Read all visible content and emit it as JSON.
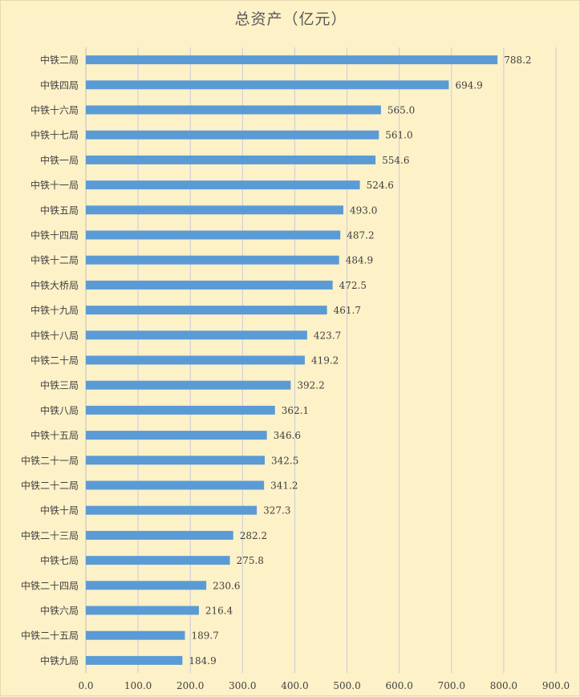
{
  "chart_data": {
    "type": "bar",
    "orientation": "horizontal",
    "title": "总资产（亿元）",
    "xlabel": "",
    "ylabel": "",
    "xlim": [
      0,
      900
    ],
    "ticks": [
      "0.0",
      "100.0",
      "200.0",
      "300.0",
      "400.0",
      "500.0",
      "600.0",
      "700.0",
      "800.0",
      "900.0"
    ],
    "tick_values": [
      0,
      100,
      200,
      300,
      400,
      500,
      600,
      700,
      800,
      900
    ],
    "grid": "vertical",
    "bar_color": "#5b9bd5",
    "background_color": "#fdf1c8",
    "categories": [
      "中铁二局",
      "中铁四局",
      "中铁十六局",
      "中铁十七局",
      "中铁一局",
      "中铁十一局",
      "中铁五局",
      "中铁十四局",
      "中铁十二局",
      "中铁大桥局",
      "中铁十九局",
      "中铁十八局",
      "中铁二十局",
      "中铁三局",
      "中铁八局",
      "中铁十五局",
      "中铁二十一局",
      "中铁二十二局",
      "中铁十局",
      "中铁二十三局",
      "中铁七局",
      "中铁二十四局",
      "中铁六局",
      "中铁二十五局",
      "中铁九局"
    ],
    "values": [
      788.2,
      694.9,
      565.0,
      561.0,
      554.6,
      524.6,
      493.0,
      487.2,
      484.9,
      472.5,
      461.7,
      423.7,
      419.2,
      392.2,
      362.1,
      346.6,
      342.5,
      341.2,
      327.3,
      282.2,
      275.8,
      230.6,
      216.4,
      189.7,
      184.9
    ],
    "value_labels": [
      "788.2",
      "694.9",
      "565.0",
      "561.0",
      "554.6",
      "524.6",
      "493.0",
      "487.2",
      "484.9",
      "472.5",
      "461.7",
      "423.7",
      "419.2",
      "392.2",
      "362.1",
      "346.6",
      "342.5",
      "341.2",
      "327.3",
      "282.2",
      "275.8",
      "230.6",
      "216.4",
      "189.7",
      "184.9"
    ]
  }
}
